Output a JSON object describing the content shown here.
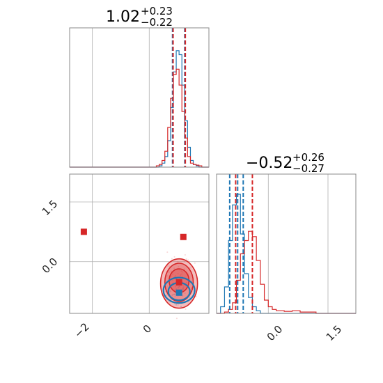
{
  "colors": {
    "blue": "#1f77b4",
    "red": "#d62728",
    "frame": "#888888",
    "grid": "#b0b0b0"
  },
  "chart_data": [
    {
      "type": "histogram",
      "panel": "top-left",
      "title": {
        "value": "1.02",
        "plus": "+0.23",
        "minus": "−0.22"
      },
      "xlim": [
        -2.8,
        2.1
      ],
      "grid_x": [
        -2,
        0
      ],
      "series": [
        {
          "name": "",
          "color": "blue",
          "bins_x": [
            0.4,
            0.5,
            0.6,
            0.7,
            0.8,
            0.9,
            1.0,
            1.1,
            1.2,
            1.3,
            1.4,
            1.5,
            1.6,
            1.7,
            1.8
          ],
          "heights": [
            0.01,
            0.03,
            0.08,
            0.2,
            0.45,
            0.72,
            0.88,
            0.85,
            0.62,
            0.35,
            0.15,
            0.05,
            0.02,
            0.01,
            0.0
          ]
        },
        {
          "name": "",
          "color": "red",
          "bins_x": [
            0.3,
            0.4,
            0.5,
            0.6,
            0.7,
            0.8,
            0.9,
            1.0,
            1.1,
            1.2,
            1.3,
            1.4,
            1.5,
            1.6,
            1.7,
            1.8,
            1.9
          ],
          "heights": [
            0.01,
            0.02,
            0.05,
            0.12,
            0.3,
            0.52,
            0.7,
            0.74,
            0.62,
            0.42,
            0.22,
            0.08,
            0.03,
            0.02,
            0.015,
            0.01,
            0.0
          ]
        }
      ],
      "vlines": [
        {
          "x": 0.82,
          "color": "blue"
        },
        {
          "x": 1.25,
          "color": "blue"
        },
        {
          "x": 0.84,
          "color": "red"
        },
        {
          "x": 1.27,
          "color": "red"
        }
      ]
    },
    {
      "type": "scatter-contour",
      "panel": "bottom-left",
      "xlim": [
        -2.8,
        2.1
      ],
      "ylim": [
        -1.3,
        2.2
      ],
      "xticks": [
        "−2",
        "0"
      ],
      "xtick_values": [
        -2,
        0
      ],
      "yticks": [
        "0.0",
        "1.5"
      ],
      "ytick_values": [
        0,
        1.5
      ],
      "markers": [
        {
          "x": -2.3,
          "y": 0.75,
          "color": "red"
        },
        {
          "x": 1.2,
          "y": 0.62,
          "color": "red"
        },
        {
          "x": 1.05,
          "y": -0.52,
          "color": "red"
        },
        {
          "x": 1.05,
          "y": -0.78,
          "color": "blue"
        }
      ],
      "contours_red": [
        {
          "cx": 1.05,
          "cy": -0.55,
          "rx": 0.65,
          "ry": 0.62
        },
        {
          "cx": 1.05,
          "cy": -0.52,
          "rx": 0.5,
          "ry": 0.48
        },
        {
          "cx": 1.05,
          "cy": -0.48,
          "rx": 0.35,
          "ry": 0.3
        }
      ],
      "contours_blue": [
        {
          "cx": 1.05,
          "cy": -0.72,
          "rx": 0.55,
          "ry": 0.32
        },
        {
          "cx": 1.05,
          "cy": -0.75,
          "rx": 0.38,
          "ry": 0.22
        }
      ]
    },
    {
      "type": "histogram",
      "panel": "bottom-right",
      "title": {
        "value": "−0.52",
        "plus": "+0.26",
        "minus": "−0.27"
      },
      "xlim": [
        -1.3,
        2.2
      ],
      "xticks": [
        "0.0",
        "1.5"
      ],
      "xtick_values": [
        0,
        1.5
      ],
      "series": [
        {
          "name": "",
          "color": "blue",
          "bins_x": [
            -1.2,
            -1.1,
            -1.0,
            -0.9,
            -0.8,
            -0.7,
            -0.6,
            -0.5,
            -0.4,
            -0.3,
            -0.2
          ],
          "heights": [
            0.05,
            0.2,
            0.55,
            0.82,
            0.9,
            0.6,
            0.3,
            0.12,
            0.05,
            0.02,
            0.0
          ]
        },
        {
          "name": "",
          "color": "red",
          "bins_x": [
            -1.1,
            -1.0,
            -0.9,
            -0.8,
            -0.7,
            -0.6,
            -0.5,
            -0.4,
            -0.3,
            -0.2,
            -0.1,
            0.0,
            0.1,
            0.2,
            0.4,
            0.6,
            0.8,
            1.0,
            1.2
          ],
          "heights": [
            0.01,
            0.03,
            0.08,
            0.25,
            0.45,
            0.55,
            0.62,
            0.58,
            0.4,
            0.22,
            0.1,
            0.05,
            0.03,
            0.02,
            0.015,
            0.02,
            0.01,
            0.01,
            0.0
          ]
        }
      ],
      "vlines": [
        {
          "x": -0.97,
          "color": "blue"
        },
        {
          "x": -0.77,
          "color": "blue"
        },
        {
          "x": -0.82,
          "color": "red"
        },
        {
          "x": -0.63,
          "color": "blue"
        },
        {
          "x": -0.4,
          "color": "red"
        }
      ]
    }
  ]
}
